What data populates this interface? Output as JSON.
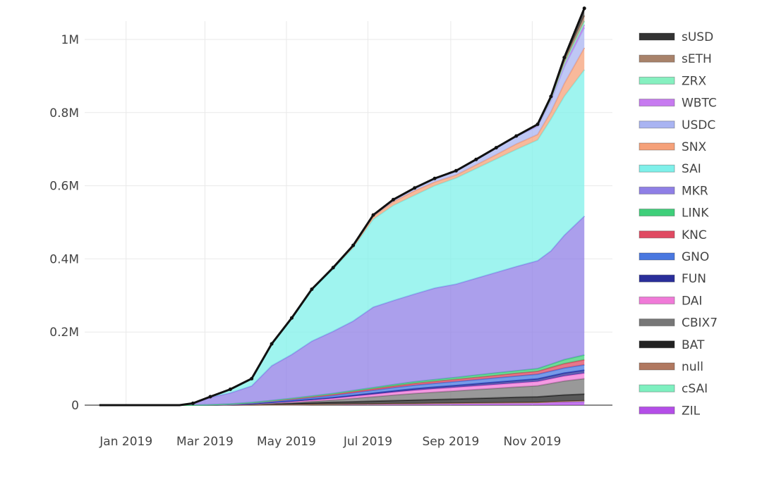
{
  "chart_data": {
    "type": "area",
    "stacked": true,
    "grid": true,
    "legend_position": "right",
    "xlabel": "",
    "ylabel": "",
    "x_ticks": [
      "Jan 2019",
      "Mar 2019",
      "May 2019",
      "Jul 2019",
      "Sep 2019",
      "Nov 2019"
    ],
    "y_ticks": [
      {
        "value": 0,
        "label": "0"
      },
      {
        "value": 200000,
        "label": "0.2M"
      },
      {
        "value": 400000,
        "label": "0.4M"
      },
      {
        "value": 600000,
        "label": "0.6M"
      },
      {
        "value": 800000,
        "label": "0.8M"
      },
      {
        "value": 1000000,
        "label": "1M"
      }
    ],
    "x_range": [
      "2018-12-01",
      "2019-12-31"
    ],
    "ylim": [
      0,
      1050000
    ],
    "x": [
      "2018-12-12",
      "2019-01-15",
      "2019-02-10",
      "2019-02-20",
      "2019-03-05",
      "2019-03-20",
      "2019-04-05",
      "2019-04-20",
      "2019-05-05",
      "2019-05-20",
      "2019-06-05",
      "2019-06-20",
      "2019-07-05",
      "2019-07-20",
      "2019-08-05",
      "2019-08-20",
      "2019-09-05",
      "2019-09-20",
      "2019-10-05",
      "2019-10-20",
      "2019-11-05",
      "2019-11-15",
      "2019-11-25",
      "2019-12-10"
    ],
    "series": [
      {
        "name": "ZIL",
        "color": "#b44ee8",
        "values": [
          0,
          0,
          0,
          0,
          100,
          300,
          800,
          1200,
          1500,
          2000,
          2500,
          3000,
          3500,
          4000,
          4500,
          5000,
          5500,
          6000,
          6500,
          7000,
          7500,
          8000,
          8500,
          9000
        ]
      },
      {
        "name": "cSAI",
        "color": "#7ef0c0",
        "values": [
          0,
          0,
          0,
          0,
          0,
          0,
          0,
          0,
          0,
          0,
          0,
          0,
          0,
          0,
          0,
          0,
          0,
          0,
          0,
          0,
          0,
          1000,
          2000,
          3000
        ]
      },
      {
        "name": "null",
        "color": "#b07860",
        "values": [
          0,
          0,
          0,
          0,
          0,
          0,
          0,
          0,
          0,
          0,
          0,
          0,
          0,
          0,
          0,
          0,
          0,
          0,
          0,
          0,
          0,
          0,
          0,
          0
        ]
      },
      {
        "name": "BAT",
        "color": "#222222",
        "values": [
          0,
          0,
          0,
          100,
          400,
          900,
          1500,
          2500,
          3500,
          4500,
          5500,
          6500,
          7500,
          8500,
          9500,
          10500,
          11500,
          12500,
          13500,
          14500,
          15500,
          16500,
          17500,
          18500
        ]
      },
      {
        "name": "CBIX7",
        "color": "#777777",
        "values": [
          0,
          0,
          0,
          0,
          100,
          300,
          800,
          1500,
          2500,
          4000,
          6000,
          9000,
          12000,
          15000,
          18000,
          20000,
          22000,
          24000,
          26000,
          28000,
          30000,
          34000,
          38000,
          42000
        ]
      },
      {
        "name": "DAI",
        "color": "#f07ad8",
        "values": [
          0,
          0,
          0,
          0,
          100,
          300,
          800,
          1500,
          2500,
          3500,
          4500,
          5500,
          6500,
          7500,
          8500,
          9000,
          9500,
          10000,
          10500,
          11000,
          11500,
          12500,
          13500,
          14500
        ]
      },
      {
        "name": "FUN",
        "color": "#2a2e9a",
        "values": [
          0,
          0,
          0,
          0,
          100,
          300,
          600,
          1000,
          1500,
          2000,
          2500,
          3000,
          3500,
          4000,
          4500,
          5000,
          5500,
          6000,
          6500,
          7000,
          7500,
          8000,
          8500,
          9000
        ]
      },
      {
        "name": "GNO",
        "color": "#4a78e0",
        "values": [
          0,
          0,
          0,
          0,
          200,
          600,
          1500,
          2500,
          3500,
          4500,
          5500,
          6500,
          7500,
          8500,
          9500,
          10000,
          10500,
          11000,
          11500,
          12000,
          12500,
          13000,
          13500,
          14000
        ]
      },
      {
        "name": "KNC",
        "color": "#e04a62",
        "values": [
          0,
          0,
          0,
          0,
          100,
          400,
          900,
          1500,
          2000,
          2500,
          3000,
          3500,
          4000,
          4500,
          5000,
          5500,
          6000,
          6500,
          7000,
          7500,
          8000,
          10000,
          12000,
          14000
        ]
      },
      {
        "name": "LINK",
        "color": "#3fcf7a",
        "values": [
          0,
          0,
          0,
          0,
          100,
          300,
          600,
          1000,
          1500,
          2000,
          2500,
          3000,
          3500,
          4000,
          4500,
          5000,
          5500,
          6000,
          6500,
          7000,
          7500,
          9000,
          11000,
          13000
        ]
      },
      {
        "name": "MKR",
        "color": "#8f7fe6",
        "values": [
          0,
          0,
          0,
          5000,
          20000,
          30000,
          45000,
          95000,
          120000,
          150000,
          170000,
          190000,
          220000,
          230000,
          240000,
          250000,
          255000,
          265000,
          275000,
          285000,
          295000,
          310000,
          340000,
          380000
        ]
      },
      {
        "name": "SAI",
        "color": "#7ff0ea",
        "values": [
          0,
          0,
          0,
          0,
          2000,
          10000,
          20000,
          60000,
          100000,
          140000,
          170000,
          200000,
          240000,
          260000,
          270000,
          280000,
          290000,
          300000,
          310000,
          320000,
          330000,
          360000,
          380000,
          400000
        ]
      },
      {
        "name": "SNX",
        "color": "#f5a17a",
        "values": [
          0,
          0,
          0,
          0,
          0,
          0,
          0,
          0,
          0,
          2000,
          3000,
          5000,
          8000,
          10000,
          12000,
          10000,
          8000,
          10000,
          12000,
          15000,
          15000,
          20000,
          35000,
          60000
        ]
      },
      {
        "name": "USDC",
        "color": "#a9b4f2",
        "values": [
          0,
          0,
          0,
          0,
          0,
          0,
          0,
          0,
          0,
          0,
          1000,
          2000,
          4000,
          6000,
          8000,
          10000,
          12000,
          15000,
          18000,
          20000,
          22000,
          30000,
          45000,
          55000
        ]
      },
      {
        "name": "WBTC",
        "color": "#c77af0",
        "values": [
          0,
          0,
          0,
          0,
          0,
          0,
          0,
          0,
          0,
          0,
          0,
          0,
          0,
          0,
          0,
          0,
          0,
          0,
          1000,
          2000,
          3000,
          4000,
          5000,
          8000
        ]
      },
      {
        "name": "ZRX",
        "color": "#86f0c0",
        "values": [
          0,
          0,
          0,
          0,
          0,
          0,
          0,
          0,
          0,
          0,
          0,
          0,
          0,
          0,
          0,
          0,
          0,
          0,
          0,
          0,
          1000,
          2000,
          5000,
          10000
        ]
      },
      {
        "name": "sETH",
        "color": "#a8826a",
        "values": [
          0,
          0,
          0,
          0,
          0,
          0,
          0,
          0,
          0,
          0,
          0,
          0,
          0,
          0,
          0,
          0,
          0,
          0,
          0,
          0,
          1000,
          3000,
          8000,
          15000
        ]
      },
      {
        "name": "sUSD",
        "color": "#333333",
        "values": [
          0,
          0,
          0,
          0,
          0,
          0,
          0,
          0,
          0,
          0,
          0,
          0,
          0,
          0,
          0,
          0,
          0,
          0,
          0,
          0,
          1000,
          3000,
          8000,
          20000
        ]
      }
    ],
    "legend_order": [
      "sUSD",
      "sETH",
      "ZRX",
      "WBTC",
      "USDC",
      "SNX",
      "SAI",
      "MKR",
      "LINK",
      "KNC",
      "GNO",
      "FUN",
      "DAI",
      "CBIX7",
      "BAT",
      "null",
      "cSAI",
      "ZIL"
    ],
    "total_line_color": "#111111"
  }
}
